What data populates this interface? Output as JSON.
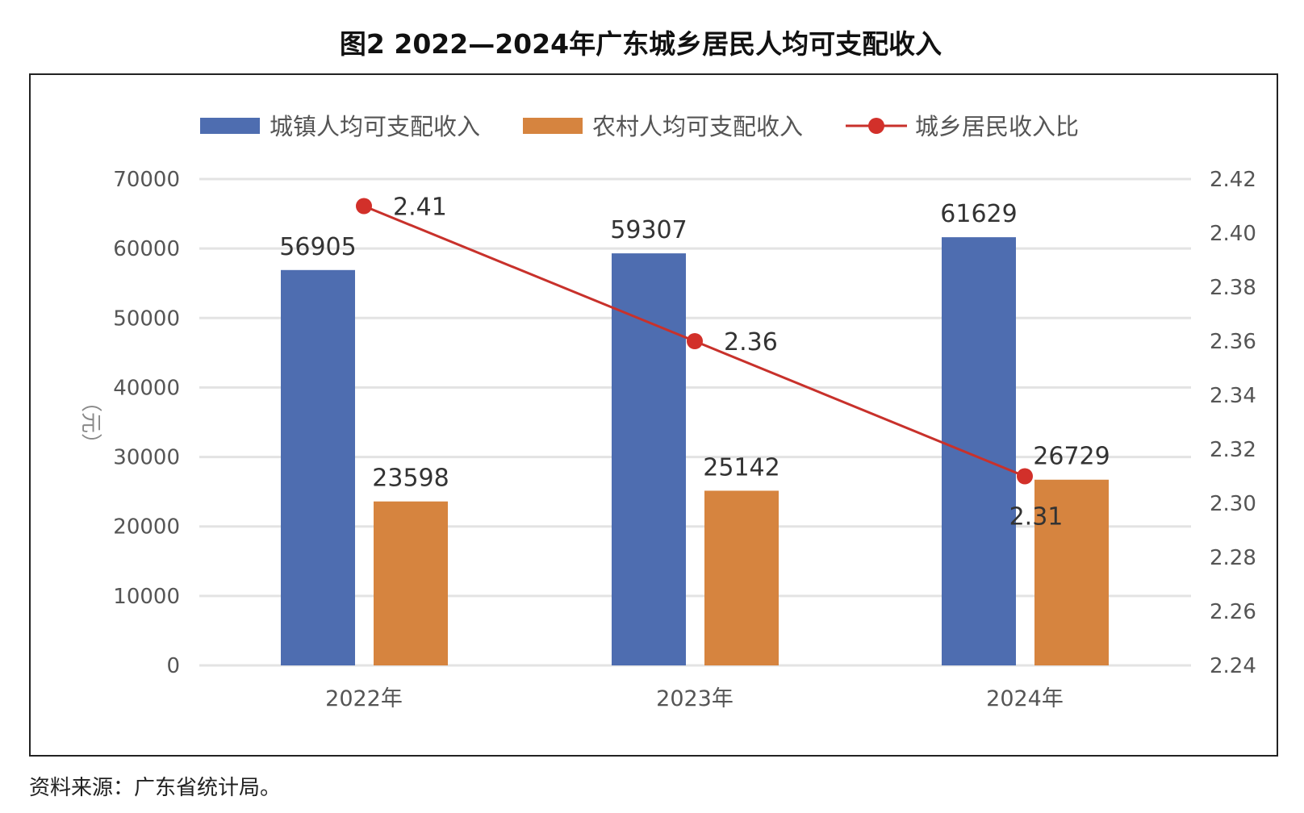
{
  "title": "图2   2022—2024年广东城乡居民人均可支配收入",
  "source": "资料来源：广东省统计局。",
  "chart_data": {
    "type": "bar",
    "categories": [
      "2022年",
      "2023年",
      "2024年"
    ],
    "series": [
      {
        "name": "城镇人均可支配收入",
        "kind": "bar",
        "axis": "left",
        "color": "#4E6DB0",
        "values": [
          56905,
          59307,
          61629
        ]
      },
      {
        "name": "农村人均可支配收入",
        "kind": "bar",
        "axis": "left",
        "color": "#D6843F",
        "values": [
          23598,
          25142,
          26729
        ]
      },
      {
        "name": "城乡居民收入比",
        "kind": "line",
        "axis": "right",
        "color": "#C8312B",
        "values": [
          2.41,
          2.36,
          2.31
        ]
      }
    ],
    "ylabel": "（元）",
    "ylim": [
      0,
      70000
    ],
    "yticks": [
      "0",
      "10000",
      "20000",
      "30000",
      "40000",
      "50000",
      "60000",
      "70000"
    ],
    "y2lim": [
      2.24,
      2.42
    ],
    "y2ticks": [
      "2.24",
      "2.26",
      "2.28",
      "2.30",
      "2.32",
      "2.34",
      "2.36",
      "2.38",
      "2.40",
      "2.42"
    ],
    "grid": true,
    "legend": "top"
  }
}
